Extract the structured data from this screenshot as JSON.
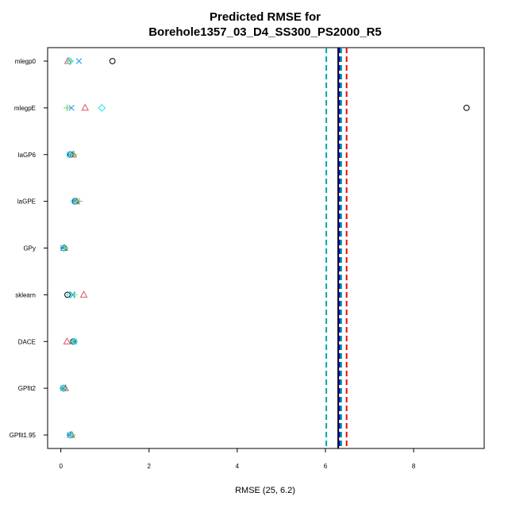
{
  "chart_data": {
    "type": "scatter",
    "title": [
      "Predicted RMSE for",
      "Borehole1357_03_D4_SS300_PS2000_R5"
    ],
    "xlabel": "RMSE (25, 6.2)",
    "ylabel": "",
    "xlim": [
      -0.3,
      9.6
    ],
    "xticks": [
      0,
      2,
      4,
      6,
      8
    ],
    "categories": [
      "mlegp0",
      "mlegpE",
      "laGP6",
      "laGPE",
      "GPy",
      "sklearn",
      "DACE",
      "GPfit2",
      "GPfit1.95"
    ],
    "grid": false,
    "legend": "none",
    "series": [
      {
        "marker": "circle",
        "color": "#000000",
        "points": [
          [
            1.17,
            "mlegp0"
          ],
          [
            9.2,
            "mlegpE"
          ],
          [
            0.22,
            "laGP6"
          ],
          [
            0.33,
            "laGPE"
          ],
          [
            0.07,
            "GPy"
          ],
          [
            0.15,
            "sklearn"
          ],
          [
            0.28,
            "DACE"
          ],
          [
            0.06,
            "GPfit2"
          ],
          [
            0.22,
            "GPfit1.95"
          ]
        ]
      },
      {
        "marker": "triangle",
        "color": "#DF536B",
        "points": [
          [
            0.16,
            "mlegp0"
          ],
          [
            0.55,
            "mlegpE"
          ],
          [
            0.28,
            "laGP6"
          ],
          [
            0.35,
            "laGPE"
          ],
          [
            0.08,
            "GPy"
          ],
          [
            0.52,
            "sklearn"
          ],
          [
            0.14,
            "DACE"
          ],
          [
            0.1,
            "GPfit2"
          ],
          [
            0.24,
            "GPfit1.95"
          ]
        ]
      },
      {
        "marker": "plus",
        "color": "#61D04F",
        "points": [
          [
            0.22,
            "mlegp0"
          ],
          [
            0.14,
            "mlegpE"
          ],
          [
            0.3,
            "laGP6"
          ],
          [
            0.42,
            "laGPE"
          ],
          [
            0.1,
            "GPy"
          ],
          [
            0.3,
            "sklearn"
          ],
          [
            0.3,
            "DACE"
          ],
          [
            0.07,
            "GPfit2"
          ],
          [
            0.26,
            "GPfit1.95"
          ]
        ]
      },
      {
        "marker": "cross",
        "color": "#2297E6",
        "points": [
          [
            0.41,
            "mlegp0"
          ],
          [
            0.24,
            "mlegpE"
          ],
          [
            0.2,
            "laGP6"
          ],
          [
            0.32,
            "laGPE"
          ],
          [
            0.05,
            "GPy"
          ],
          [
            0.27,
            "sklearn"
          ],
          [
            0.3,
            "DACE"
          ],
          [
            0.05,
            "GPfit2"
          ],
          [
            0.2,
            "GPfit1.95"
          ]
        ]
      },
      {
        "marker": "diamond",
        "color": "#28E2E5",
        "points": [
          [
            0.2,
            "mlegp0"
          ],
          [
            0.93,
            "mlegpE"
          ],
          [
            0.2,
            "laGP6"
          ],
          [
            0.3,
            "laGPE"
          ],
          [
            0.06,
            "GPy"
          ],
          [
            0.21,
            "sklearn"
          ],
          [
            0.3,
            "DACE"
          ],
          [
            0.05,
            "GPfit2"
          ],
          [
            0.21,
            "GPfit1.95"
          ]
        ]
      }
    ],
    "vlines": [
      {
        "x": 6.02,
        "color": "#00A8A8",
        "style": "dashed"
      },
      {
        "x": 6.29,
        "color": "#000000",
        "style": "solid"
      },
      {
        "x": 6.32,
        "color": "#0000DD",
        "style": "dashed"
      },
      {
        "x": 6.36,
        "color": "#00A8A8",
        "style": "dashed"
      },
      {
        "x": 6.48,
        "color": "#EE0000",
        "style": "dashed"
      }
    ]
  }
}
